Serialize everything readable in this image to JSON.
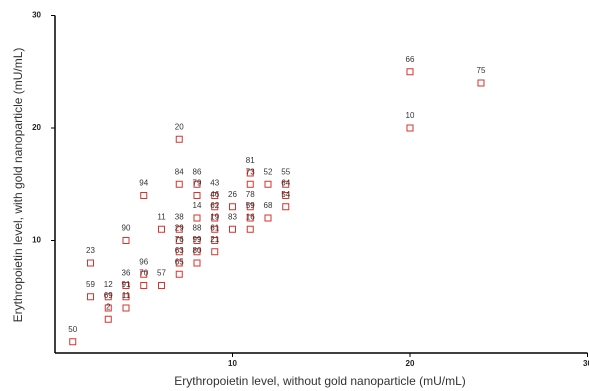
{
  "chart_data": {
    "type": "scatter",
    "x_label": "Erythropoietin level, without gold nanoparticle (mU/mL)",
    "y_label": "Erythropoietin level, with gold nanoparticle (mU/mL)",
    "x": [
      1,
      2,
      2,
      3,
      3,
      3,
      4,
      4,
      4,
      4,
      5,
      5,
      5,
      6,
      6,
      7,
      7,
      7,
      7,
      7,
      7,
      7,
      8,
      8,
      8,
      8,
      8,
      8,
      9,
      9,
      9,
      9,
      9,
      9,
      10,
      10,
      11,
      11,
      11,
      11,
      11,
      12,
      12,
      13,
      13,
      13,
      20,
      20,
      24
    ],
    "values": [
      1,
      8,
      5,
      5,
      4,
      3,
      6,
      5,
      4,
      10,
      14,
      7,
      6,
      11,
      6,
      19,
      15,
      11,
      10,
      9,
      8,
      7,
      15,
      14,
      12,
      10,
      9,
      8,
      14,
      13,
      12,
      11,
      10,
      9,
      13,
      11,
      16,
      15,
      13,
      12,
      11,
      15,
      12,
      15,
      14,
      13,
      25,
      20,
      24
    ],
    "point_labels": [
      "50",
      "23",
      "59",
      "12",
      "69",
      "2",
      "36",
      "91",
      "11",
      "90",
      "94",
      "96",
      "70",
      "11",
      "57",
      "20",
      "84",
      "38",
      "29",
      "76",
      "63",
      "65",
      "86",
      "79",
      "14",
      "88",
      "99",
      "80",
      "43",
      "46",
      "62",
      "19",
      "61",
      "21",
      "26",
      "83",
      "81",
      "73",
      "78",
      "59",
      "16",
      "52",
      "68",
      "55",
      "64",
      "54",
      "66",
      "10",
      "75"
    ],
    "color": "#d9322e",
    "xlim": [
      0,
      30
    ],
    "ylim": [
      0,
      30
    ],
    "xticks": [
      10,
      20,
      30
    ],
    "yticks": [
      10,
      20,
      30
    ]
  }
}
